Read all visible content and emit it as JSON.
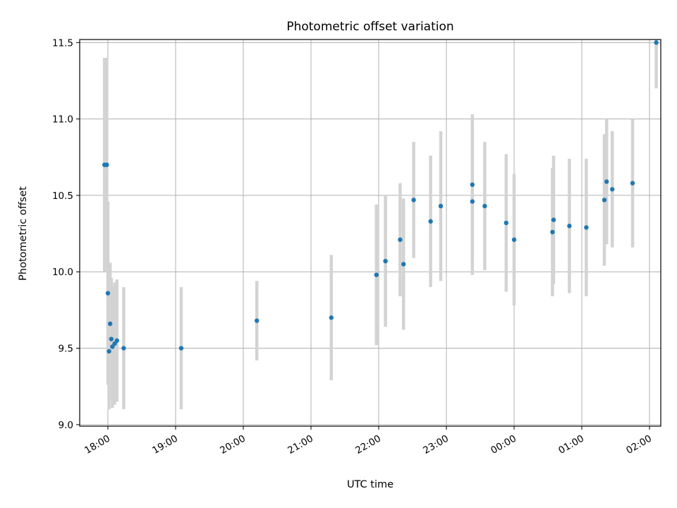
{
  "chart_data": {
    "type": "scatter",
    "title": "Photometric offset variation",
    "xlabel": "UTC time",
    "ylabel": "Photometric offset",
    "grid": true,
    "xlim": [
      "17:35",
      "02:10"
    ],
    "ylim": [
      8.99,
      11.52
    ],
    "x_ticks": [
      "18:00",
      "19:00",
      "20:00",
      "21:00",
      "22:00",
      "23:00",
      "00:00",
      "01:00",
      "02:00"
    ],
    "y_ticks": [
      "9.0",
      "9.5",
      "10.0",
      "10.5",
      "11.0",
      "11.5"
    ],
    "point_color": "#1f77b4",
    "errorbar_color": "#d3d3d3",
    "points": [
      {
        "t": "17:57",
        "y": 10.7,
        "err": 0.7
      },
      {
        "t": "17:59",
        "y": 10.7,
        "err": 0.7
      },
      {
        "t": "18:00",
        "y": 9.86,
        "err": 0.6
      },
      {
        "t": "18:01",
        "y": 9.48,
        "err": 0.38
      },
      {
        "t": "18:02",
        "y": 9.66,
        "err": 0.4
      },
      {
        "t": "18:03",
        "y": 9.56,
        "err": 0.4
      },
      {
        "t": "18:04",
        "y": 9.51,
        "err": 0.4
      },
      {
        "t": "18:06",
        "y": 9.53,
        "err": 0.4
      },
      {
        "t": "18:08",
        "y": 9.55,
        "err": 0.4
      },
      {
        "t": "18:14",
        "y": 9.5,
        "err": 0.4
      },
      {
        "t": "19:05",
        "y": 9.5,
        "err": 0.4
      },
      {
        "t": "20:12",
        "y": 9.68,
        "err": 0.26
      },
      {
        "t": "21:18",
        "y": 9.7,
        "err": 0.41
      },
      {
        "t": "21:58",
        "y": 9.98,
        "err": 0.46
      },
      {
        "t": "22:06",
        "y": 10.07,
        "err": 0.43
      },
      {
        "t": "22:19",
        "y": 10.21,
        "err": 0.37
      },
      {
        "t": "22:22",
        "y": 10.05,
        "err": 0.43
      },
      {
        "t": "22:31",
        "y": 10.47,
        "err": 0.38
      },
      {
        "t": "22:46",
        "y": 10.33,
        "err": 0.43
      },
      {
        "t": "22:55",
        "y": 10.43,
        "err": 0.49
      },
      {
        "t": "23:23",
        "y": 10.57,
        "err": 0.46
      },
      {
        "t": "23:23",
        "y": 10.46,
        "err": 0.48
      },
      {
        "t": "23:34",
        "y": 10.43,
        "err": 0.42
      },
      {
        "t": "23:53",
        "y": 10.32,
        "err": 0.45
      },
      {
        "t": "00:00",
        "y": 10.21,
        "err": 0.43
      },
      {
        "t": "00:34",
        "y": 10.26,
        "err": 0.42
      },
      {
        "t": "00:35",
        "y": 10.34,
        "err": 0.42
      },
      {
        "t": "00:49",
        "y": 10.3,
        "err": 0.44
      },
      {
        "t": "01:04",
        "y": 10.29,
        "err": 0.45
      },
      {
        "t": "01:20",
        "y": 10.47,
        "err": 0.43
      },
      {
        "t": "01:22",
        "y": 10.59,
        "err": 0.41
      },
      {
        "t": "01:27",
        "y": 10.54,
        "err": 0.38
      },
      {
        "t": "01:45",
        "y": 10.58,
        "err": 0.42
      },
      {
        "t": "02:06",
        "y": 11.5,
        "err": 0.3
      }
    ]
  }
}
